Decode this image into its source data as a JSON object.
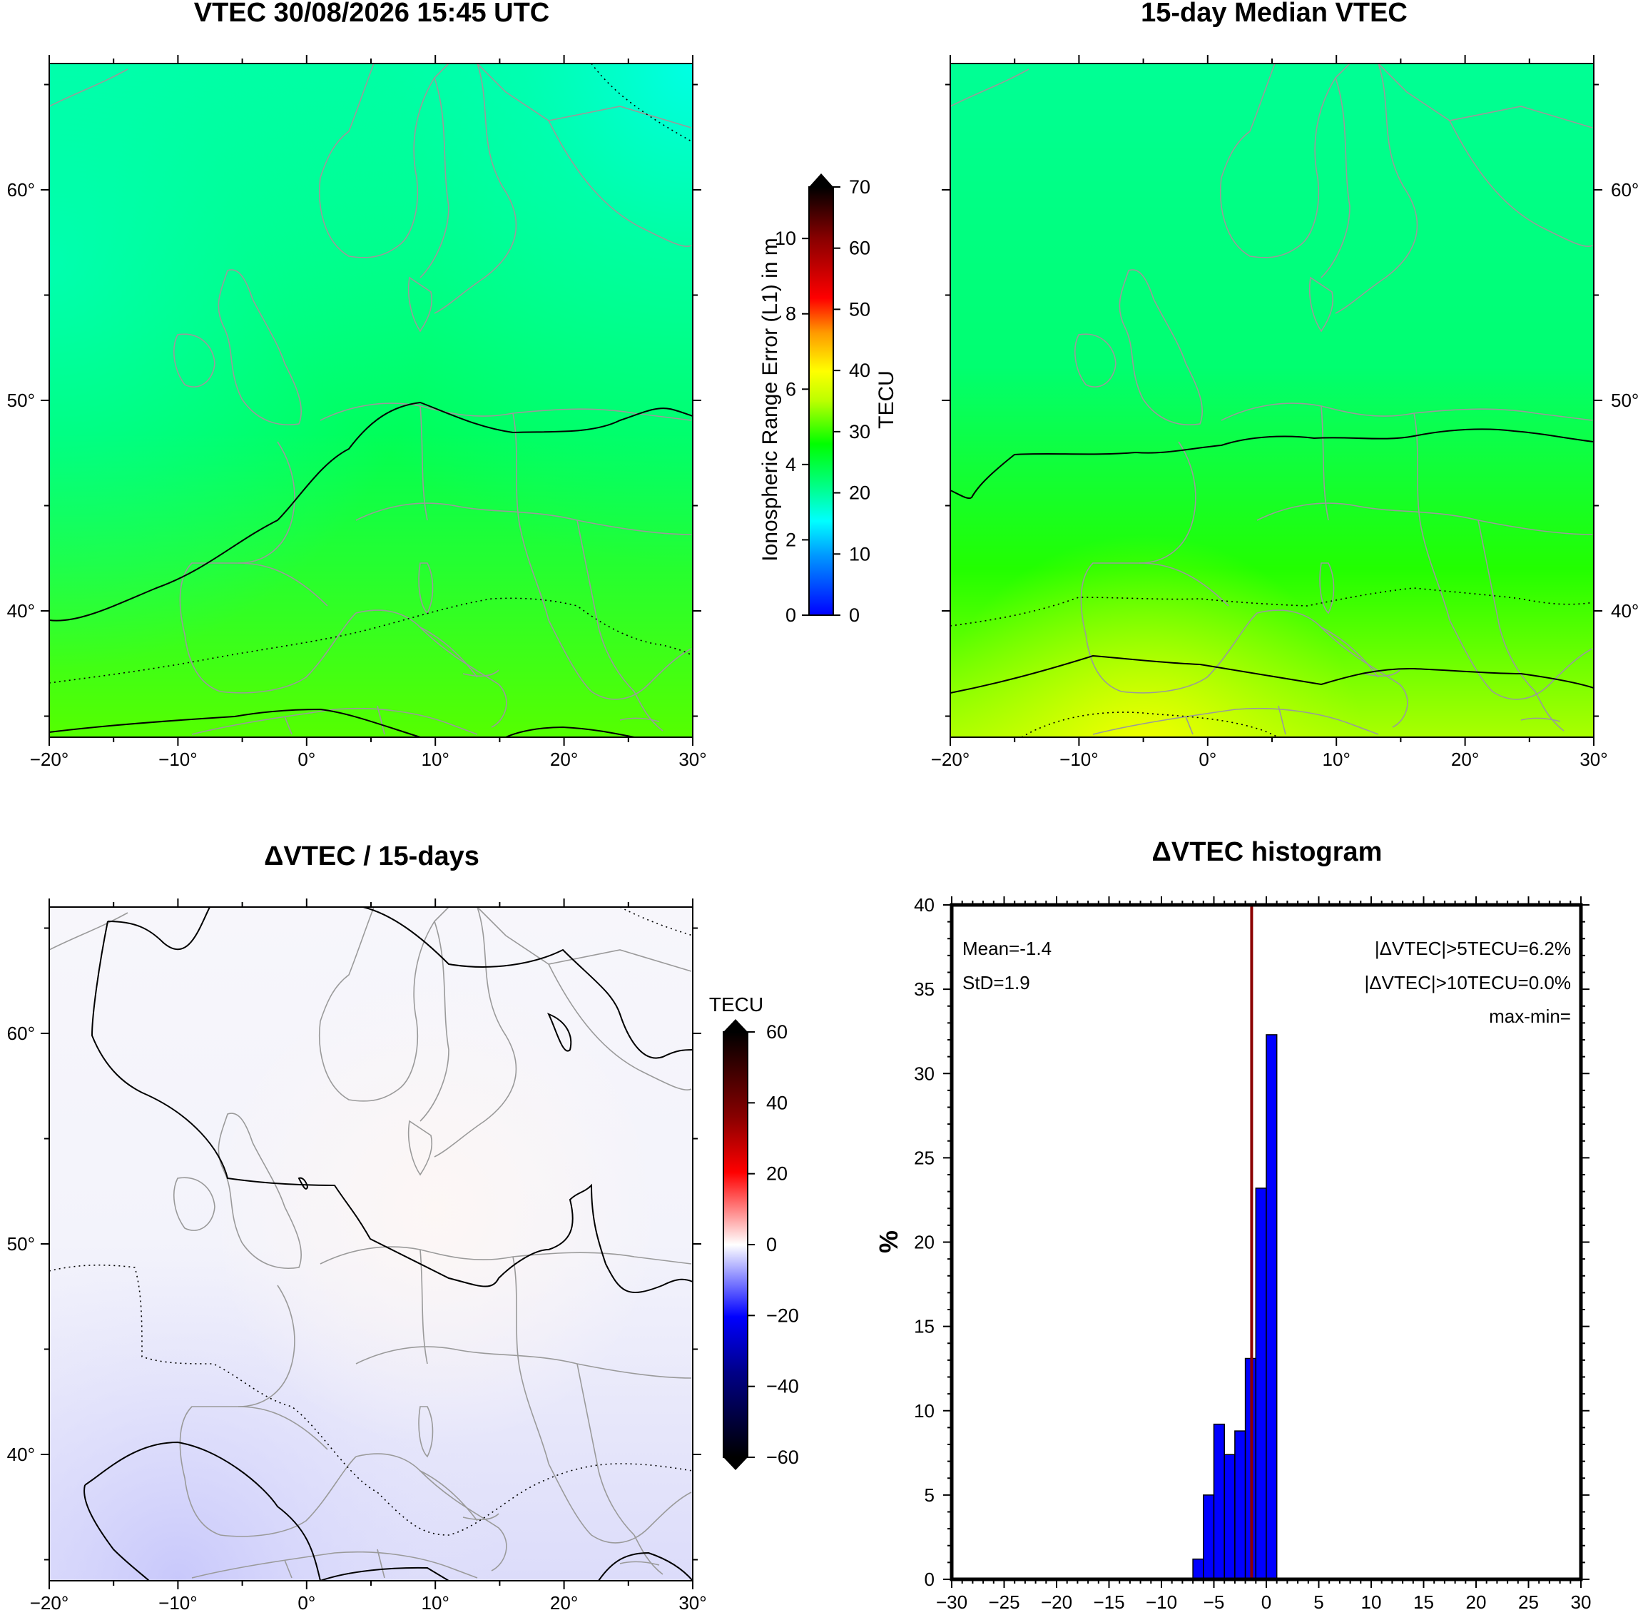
{
  "panels": {
    "vtec": {
      "title": "VTEC 30/08/2026 15:45 UTC",
      "x_ticks": [
        "−20°",
        "−10°",
        "0°",
        "10°",
        "20°",
        "30°"
      ],
      "y_ticks": [
        "60°",
        "50°",
        "40°"
      ]
    },
    "median": {
      "title": "15-day Median VTEC",
      "x_ticks": [
        "−20°",
        "−10°",
        "0°",
        "10°",
        "20°",
        "30°"
      ],
      "y_ticks": [
        "60°",
        "50°",
        "40°"
      ]
    },
    "delta": {
      "title": "ΔVTEC / 15-days",
      "x_ticks": [
        "−20°",
        "−10°",
        "0°",
        "10°",
        "20°",
        "30°"
      ],
      "y_ticks": [
        "60°",
        "50°",
        "40°"
      ]
    }
  },
  "colorbar_vtec": {
    "label_left": "Ionospheric Range Error (L1) in m",
    "label_right": "TECU",
    "left_ticks": [
      "0",
      "2",
      "4",
      "6",
      "8",
      "10"
    ],
    "right_ticks": [
      "0",
      "10",
      "20",
      "30",
      "40",
      "50",
      "60",
      "70"
    ]
  },
  "colorbar_delta": {
    "label": "TECU",
    "ticks": [
      "−60",
      "−40",
      "−20",
      "0",
      "20",
      "40",
      "60"
    ]
  },
  "histogram": {
    "title": "ΔVTEC histogram",
    "mean": "Mean=-1.4",
    "std": "StD=1.9",
    "gt5": "|ΔVTEC|>5TECU=6.2%",
    "gt10": "|ΔVTEC|>10TECU=0.0%",
    "maxmin": "max-min=",
    "ylabel": "%",
    "bar_color": "#0000ff",
    "mean_line_color": "#8b0000"
  },
  "chart_data": [
    {
      "type": "heatmap",
      "title": "VTEC 30/08/2026 15:45 UTC",
      "xlim": [
        -20,
        30
      ],
      "ylim": [
        34,
        66
      ],
      "x_ticks": [
        -20,
        -10,
        0,
        10,
        20,
        30
      ],
      "y_ticks": [
        40,
        50,
        60
      ],
      "color_range_TECU": [
        0,
        70
      ],
      "approx_values_TECU": "about 13 at the north-east corner, about 20 near 50°N, about 27 near the southern edge"
    },
    {
      "type": "heatmap",
      "title": "15-day Median VTEC",
      "xlim": [
        -20,
        30
      ],
      "ylim": [
        34,
        66
      ],
      "x_ticks": [
        -20,
        -10,
        0,
        10,
        20,
        30
      ],
      "y_ticks": [
        40,
        50,
        60
      ],
      "color_range_TECU": [
        0,
        70
      ],
      "approx_values_TECU": "about 18 in the north, about 20 near 49°N, about 33 at the southern edge near −5°"
    },
    {
      "type": "heatmap",
      "title": "ΔVTEC / 15-days",
      "xlim": [
        -20,
        30
      ],
      "ylim": [
        34,
        66
      ],
      "x_ticks": [
        -20,
        -10,
        0,
        10,
        20,
        30
      ],
      "y_ticks": [
        40,
        50,
        60
      ],
      "color_range_TECU": [
        -60,
        60
      ],
      "approx_values_TECU": "near 0 over central Europe, about −5 over the south-west Atlantic and Iberia"
    },
    {
      "type": "bar",
      "title": "ΔVTEC histogram",
      "xlabel": "",
      "ylabel": "%",
      "xlim": [
        -30,
        30
      ],
      "ylim": [
        0,
        40
      ],
      "x_ticks": [
        -30,
        -25,
        -20,
        -15,
        -10,
        -5,
        0,
        5,
        10,
        15,
        20,
        25,
        30
      ],
      "y_ticks": [
        0,
        5,
        10,
        15,
        20,
        25,
        30,
        35,
        40
      ],
      "bin_width": 1,
      "bins": [
        {
          "from": -7,
          "to": -6,
          "value": 1.2
        },
        {
          "from": -6,
          "to": -5,
          "value": 5.0
        },
        {
          "from": -5,
          "to": -4,
          "value": 9.2
        },
        {
          "from": -4,
          "to": -3,
          "value": 7.4
        },
        {
          "from": -3,
          "to": -2,
          "value": 8.8
        },
        {
          "from": -2,
          "to": -1,
          "value": 13.1
        },
        {
          "from": -1,
          "to": 0,
          "value": 23.2
        },
        {
          "from": 0,
          "to": 1,
          "value": 32.3
        }
      ],
      "mean": -1.4
    }
  ]
}
